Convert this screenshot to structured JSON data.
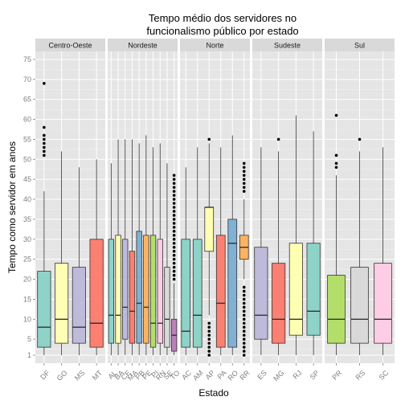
{
  "chart_data": {
    "type": "boxplot",
    "title_lines": [
      "Tempo médio dos servidores no",
      "funcionalismo público por estado"
    ],
    "xlabel": "Estado",
    "ylabel": "Tempo como servidor em anos",
    "ylim": [
      -1,
      77
    ],
    "yticks": [
      1,
      5,
      10,
      15,
      20,
      25,
      30,
      35,
      40,
      45,
      50,
      55,
      60,
      65,
      70,
      75
    ],
    "grid": true,
    "facets": [
      {
        "name": "Centro-Oeste",
        "boxes": [
          {
            "state": "DF",
            "color": "#8DD3C7",
            "q1": 3,
            "median": 8,
            "q3": 22,
            "lower": 1,
            "upper": 42,
            "outliers": [
              51,
              52,
              53,
              54,
              55,
              56,
              58,
              69
            ]
          },
          {
            "state": "GO",
            "color": "#FFFFB3",
            "q1": 4,
            "median": 10,
            "q3": 24,
            "lower": 1,
            "upper": 52,
            "outliers": []
          },
          {
            "state": "MS",
            "color": "#BEBADA",
            "q1": 4,
            "median": 8,
            "q3": 23,
            "lower": 1,
            "upper": 48,
            "outliers": []
          },
          {
            "state": "MT",
            "color": "#FB8072",
            "q1": 3,
            "median": 9,
            "q3": 30,
            "lower": 1,
            "upper": 50,
            "outliers": []
          }
        ]
      },
      {
        "name": "Nordeste",
        "boxes": [
          {
            "state": "AL",
            "color": "#8DD3C7",
            "q1": 4,
            "median": 11,
            "q3": 30,
            "lower": 1,
            "upper": 49,
            "outliers": []
          },
          {
            "state": "BA",
            "color": "#FFFFB3",
            "q1": 4,
            "median": 11,
            "q3": 31,
            "lower": 1,
            "upper": 55,
            "outliers": []
          },
          {
            "state": "CE",
            "color": "#BEBADA",
            "q1": 5,
            "median": 13,
            "q3": 30,
            "lower": 1,
            "upper": 55,
            "outliers": []
          },
          {
            "state": "MA",
            "color": "#FB8072",
            "q1": 4,
            "median": 12,
            "q3": 27,
            "lower": 1,
            "upper": 55,
            "outliers": []
          },
          {
            "state": "PB",
            "color": "#80B1D3",
            "q1": 4,
            "median": 14,
            "q3": 32,
            "lower": 1,
            "upper": 54,
            "outliers": []
          },
          {
            "state": "PE",
            "color": "#FDB462",
            "q1": 4,
            "median": 13,
            "q3": 31,
            "lower": 1,
            "upper": 56,
            "outliers": []
          },
          {
            "state": "PI",
            "color": "#B3DE69",
            "q1": 3,
            "median": 9,
            "q3": 31,
            "lower": 1,
            "upper": 53,
            "outliers": []
          },
          {
            "state": "RN",
            "color": "#FCCDE5",
            "q1": 4,
            "median": 9,
            "q3": 30,
            "lower": 1,
            "upper": 54,
            "outliers": []
          },
          {
            "state": "SE",
            "color": "#D9D9D9",
            "q1": 3,
            "median": 10,
            "q3": 23,
            "lower": 1,
            "upper": 49,
            "outliers": []
          },
          {
            "state": "TO",
            "color": "#BC80BD",
            "q1": 2,
            "median": 6,
            "q3": 10,
            "lower": 1,
            "upper": 19,
            "outliers": [
              20,
              21,
              22,
              23,
              24,
              25,
              26,
              27,
              28,
              29,
              30,
              31,
              32,
              33,
              34,
              35,
              36,
              37,
              38,
              39,
              40,
              41,
              42,
              43,
              44,
              45,
              46
            ]
          }
        ]
      },
      {
        "name": "Norte",
        "boxes": [
          {
            "state": "AC",
            "color": "#8DD3C7",
            "q1": 3,
            "median": 7,
            "q3": 30,
            "lower": 1,
            "upper": 48,
            "outliers": []
          },
          {
            "state": "AM",
            "color": "#8DD3C7",
            "q1": 3,
            "median": 11,
            "q3": 30,
            "lower": 1,
            "upper": 53,
            "outliers": []
          },
          {
            "state": "AP",
            "color": "#FFFFB3",
            "q1": 27,
            "median": 38,
            "q3": 38,
            "lower": 11,
            "upper": 54,
            "outliers": [
              1,
              2,
              3,
              4,
              5,
              6,
              7,
              8,
              9,
              55
            ]
          },
          {
            "state": "PA",
            "color": "#FB8072",
            "q1": 3,
            "median": 14,
            "q3": 31,
            "lower": 1,
            "upper": 53,
            "outliers": []
          },
          {
            "state": "RO",
            "color": "#80B1D3",
            "q1": 3,
            "median": 29,
            "q3": 35,
            "lower": 1,
            "upper": 56,
            "outliers": []
          },
          {
            "state": "RR",
            "color": "#FDB462",
            "q1": 25,
            "median": 28,
            "q3": 31,
            "lower": 20,
            "upper": 40,
            "outliers": [
              1,
              2,
              3,
              4,
              5,
              6,
              7,
              8,
              9,
              10,
              11,
              12,
              13,
              14,
              15,
              16,
              17,
              18,
              42,
              43,
              44,
              45,
              46,
              47,
              48,
              49
            ]
          }
        ]
      },
      {
        "name": "Sudeste",
        "boxes": [
          {
            "state": "ES",
            "color": "#BEBADA",
            "q1": 5,
            "median": 11,
            "q3": 28,
            "lower": 1,
            "upper": 53,
            "outliers": []
          },
          {
            "state": "MG",
            "color": "#FB8072",
            "q1": 4,
            "median": 10,
            "q3": 24,
            "lower": 1,
            "upper": 52,
            "outliers": [
              55
            ]
          },
          {
            "state": "RJ",
            "color": "#FFFFB3",
            "q1": 6,
            "median": 10,
            "q3": 29,
            "lower": 1,
            "upper": 61,
            "outliers": []
          },
          {
            "state": "SP",
            "color": "#8DD3C7",
            "q1": 6,
            "median": 12,
            "q3": 29,
            "lower": 1,
            "upper": 57,
            "outliers": []
          }
        ]
      },
      {
        "name": "Sul",
        "boxes": [
          {
            "state": "PR",
            "color": "#B3DE69",
            "q1": 4,
            "median": 10,
            "q3": 21,
            "lower": 1,
            "upper": 46,
            "outliers": [
              48,
              49,
              51,
              61
            ]
          },
          {
            "state": "RS",
            "color": "#D9D9D9",
            "q1": 4,
            "median": 10,
            "q3": 23,
            "lower": 1,
            "upper": 52,
            "outliers": [
              55
            ]
          },
          {
            "state": "SC",
            "color": "#FCCDE5",
            "q1": 4,
            "median": 10,
            "q3": 24,
            "lower": 1,
            "upper": 53,
            "outliers": []
          }
        ]
      }
    ]
  }
}
